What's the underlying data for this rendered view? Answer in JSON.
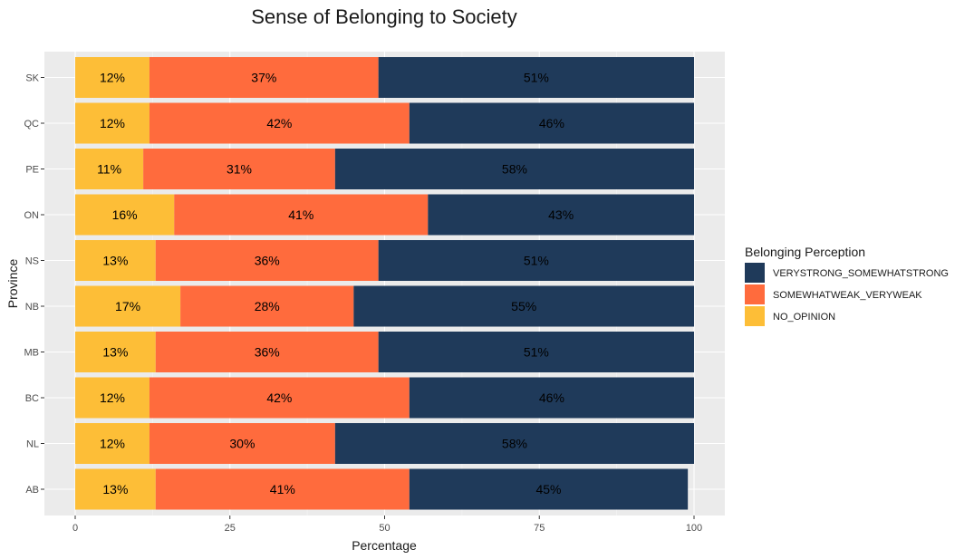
{
  "chart_data": {
    "type": "bar",
    "orientation": "horizontal",
    "stacked": true,
    "title": "Sense of Belonging to Society",
    "xlabel": "Percentage",
    "ylabel": "Province",
    "xlim": [
      0,
      100
    ],
    "xticks": [
      0,
      25,
      50,
      75,
      100
    ],
    "grid": true,
    "categories": [
      "SK",
      "QC",
      "PE",
      "ON",
      "NS",
      "NB",
      "MB",
      "BC",
      "NL",
      "AB"
    ],
    "legend": {
      "title": "Belonging Perception",
      "position": "right"
    },
    "series": [
      {
        "name": "NO_OPINION",
        "color": "#FDBE37",
        "values": [
          12,
          12,
          11,
          16,
          13,
          17,
          13,
          12,
          12,
          13
        ],
        "labels": [
          "12%",
          "12%",
          "11%",
          "16%",
          "13%",
          "17%",
          "13%",
          "12%",
          "12%",
          "13%"
        ]
      },
      {
        "name": "SOMEWHATWEAK_VERYWEAK",
        "color": "#FF6B3D",
        "values": [
          37,
          42,
          31,
          41,
          36,
          28,
          36,
          42,
          30,
          41
        ],
        "labels": [
          "37%",
          "42%",
          "31%",
          "41%",
          "36%",
          "28%",
          "36%",
          "42%",
          "30%",
          "41%"
        ]
      },
      {
        "name": "VERYSTRONG_SOMEWHATSTRONG",
        "color": "#1F3A5A",
        "values": [
          51,
          46,
          58,
          43,
          51,
          55,
          51,
          46,
          58,
          45
        ],
        "labels": [
          "51%",
          "46%",
          "58%",
          "43%",
          "51%",
          "55%",
          "51%",
          "46%",
          "58%",
          "45%"
        ]
      }
    ],
    "legend_order": [
      "VERYSTRONG_SOMEWHATSTRONG",
      "SOMEWHATWEAK_VERYWEAK",
      "NO_OPINION"
    ]
  }
}
